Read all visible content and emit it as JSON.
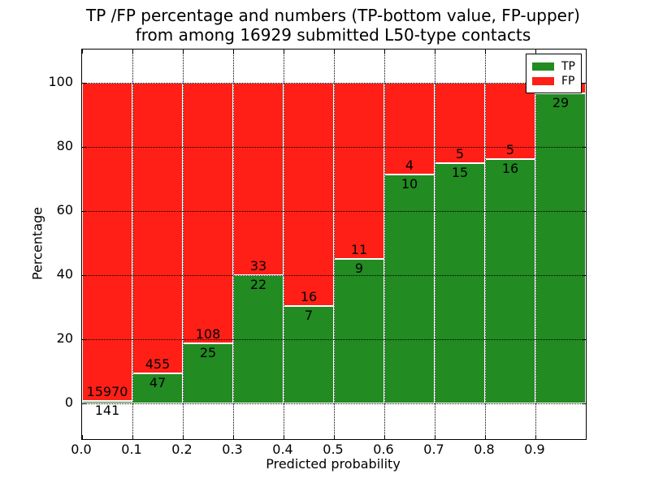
{
  "figure": {
    "title_line1": "TP /FP percentage and numbers (TP-bottom value, FP-upper)",
    "title_line2": "from among 16929 submitted L50-type contacts",
    "xlabel": "Predicted probability",
    "ylabel": "Percentage"
  },
  "legend": {
    "items": [
      {
        "label": "TP",
        "color": "#228b22"
      },
      {
        "label": "FP",
        "color": "#ff1f16"
      }
    ]
  },
  "chart_data": {
    "type": "bar",
    "stacked": true,
    "title": "TP /FP percentage and numbers (TP-bottom value, FP-upper)\nfrom among 16929 submitted L50-type contacts",
    "xlabel": "Predicted probability",
    "ylabel": "Percentage",
    "xlim": [
      0.0,
      1.0
    ],
    "ylim": [
      -11,
      110.3
    ],
    "grid": true,
    "legend_position": "upper right",
    "series": [
      {
        "name": "TP",
        "color": "#228b22",
        "position": "bottom"
      },
      {
        "name": "FP",
        "color": "#ff1f16",
        "position": "top"
      }
    ],
    "x_ticks": [
      {
        "v": 0.0,
        "label": "0.0"
      },
      {
        "v": 0.1,
        "label": "0.1"
      },
      {
        "v": 0.2,
        "label": "0.2"
      },
      {
        "v": 0.3,
        "label": "0.3"
      },
      {
        "v": 0.4,
        "label": "0.4"
      },
      {
        "v": 0.5,
        "label": "0.5"
      },
      {
        "v": 0.6,
        "label": "0.6"
      },
      {
        "v": 0.7,
        "label": "0.7"
      },
      {
        "v": 0.8,
        "label": "0.8"
      },
      {
        "v": 0.9,
        "label": "0.9"
      }
    ],
    "y_ticks": [
      {
        "v": 0,
        "label": "0"
      },
      {
        "v": 20,
        "label": "20"
      },
      {
        "v": 40,
        "label": "40"
      },
      {
        "v": 60,
        "label": "60"
      },
      {
        "v": 80,
        "label": "80"
      },
      {
        "v": 100,
        "label": "100"
      }
    ],
    "bins": [
      {
        "range": [
          0.0,
          0.1
        ],
        "tp_count": 141,
        "fp_count": 15970,
        "tp_pct": 0.88,
        "tp_label": "141",
        "fp_label": "15970"
      },
      {
        "range": [
          0.1,
          0.2
        ],
        "tp_count": 47,
        "fp_count": 455,
        "tp_pct": 9.36,
        "tp_label": "47",
        "fp_label": "455"
      },
      {
        "range": [
          0.2,
          0.3
        ],
        "tp_count": 25,
        "fp_count": 108,
        "tp_pct": 18.8,
        "tp_label": "25",
        "fp_label": "108"
      },
      {
        "range": [
          0.3,
          0.4
        ],
        "tp_count": 22,
        "fp_count": 33,
        "tp_pct": 40.0,
        "tp_label": "22",
        "fp_label": "33"
      },
      {
        "range": [
          0.4,
          0.5
        ],
        "tp_count": 7,
        "fp_count": 16,
        "tp_pct": 30.43,
        "tp_label": "7",
        "fp_label": "16"
      },
      {
        "range": [
          0.5,
          0.6
        ],
        "tp_count": 9,
        "fp_count": 11,
        "tp_pct": 45.0,
        "tp_label": "9",
        "fp_label": "11"
      },
      {
        "range": [
          0.6,
          0.7
        ],
        "tp_count": 10,
        "fp_count": 4,
        "tp_pct": 71.43,
        "tp_label": "10",
        "fp_label": "4"
      },
      {
        "range": [
          0.7,
          0.8
        ],
        "tp_count": 15,
        "fp_count": 5,
        "tp_pct": 75.0,
        "tp_label": "15",
        "fp_label": "5"
      },
      {
        "range": [
          0.8,
          0.9
        ],
        "tp_count": 16,
        "fp_count": 5,
        "tp_pct": 76.19,
        "tp_label": "16",
        "fp_label": "5"
      },
      {
        "range": [
          0.9,
          1.0
        ],
        "tp_count": 29,
        "fp_count": null,
        "tp_pct": 96.67,
        "tp_label": "29",
        "fp_label": ""
      }
    ]
  }
}
